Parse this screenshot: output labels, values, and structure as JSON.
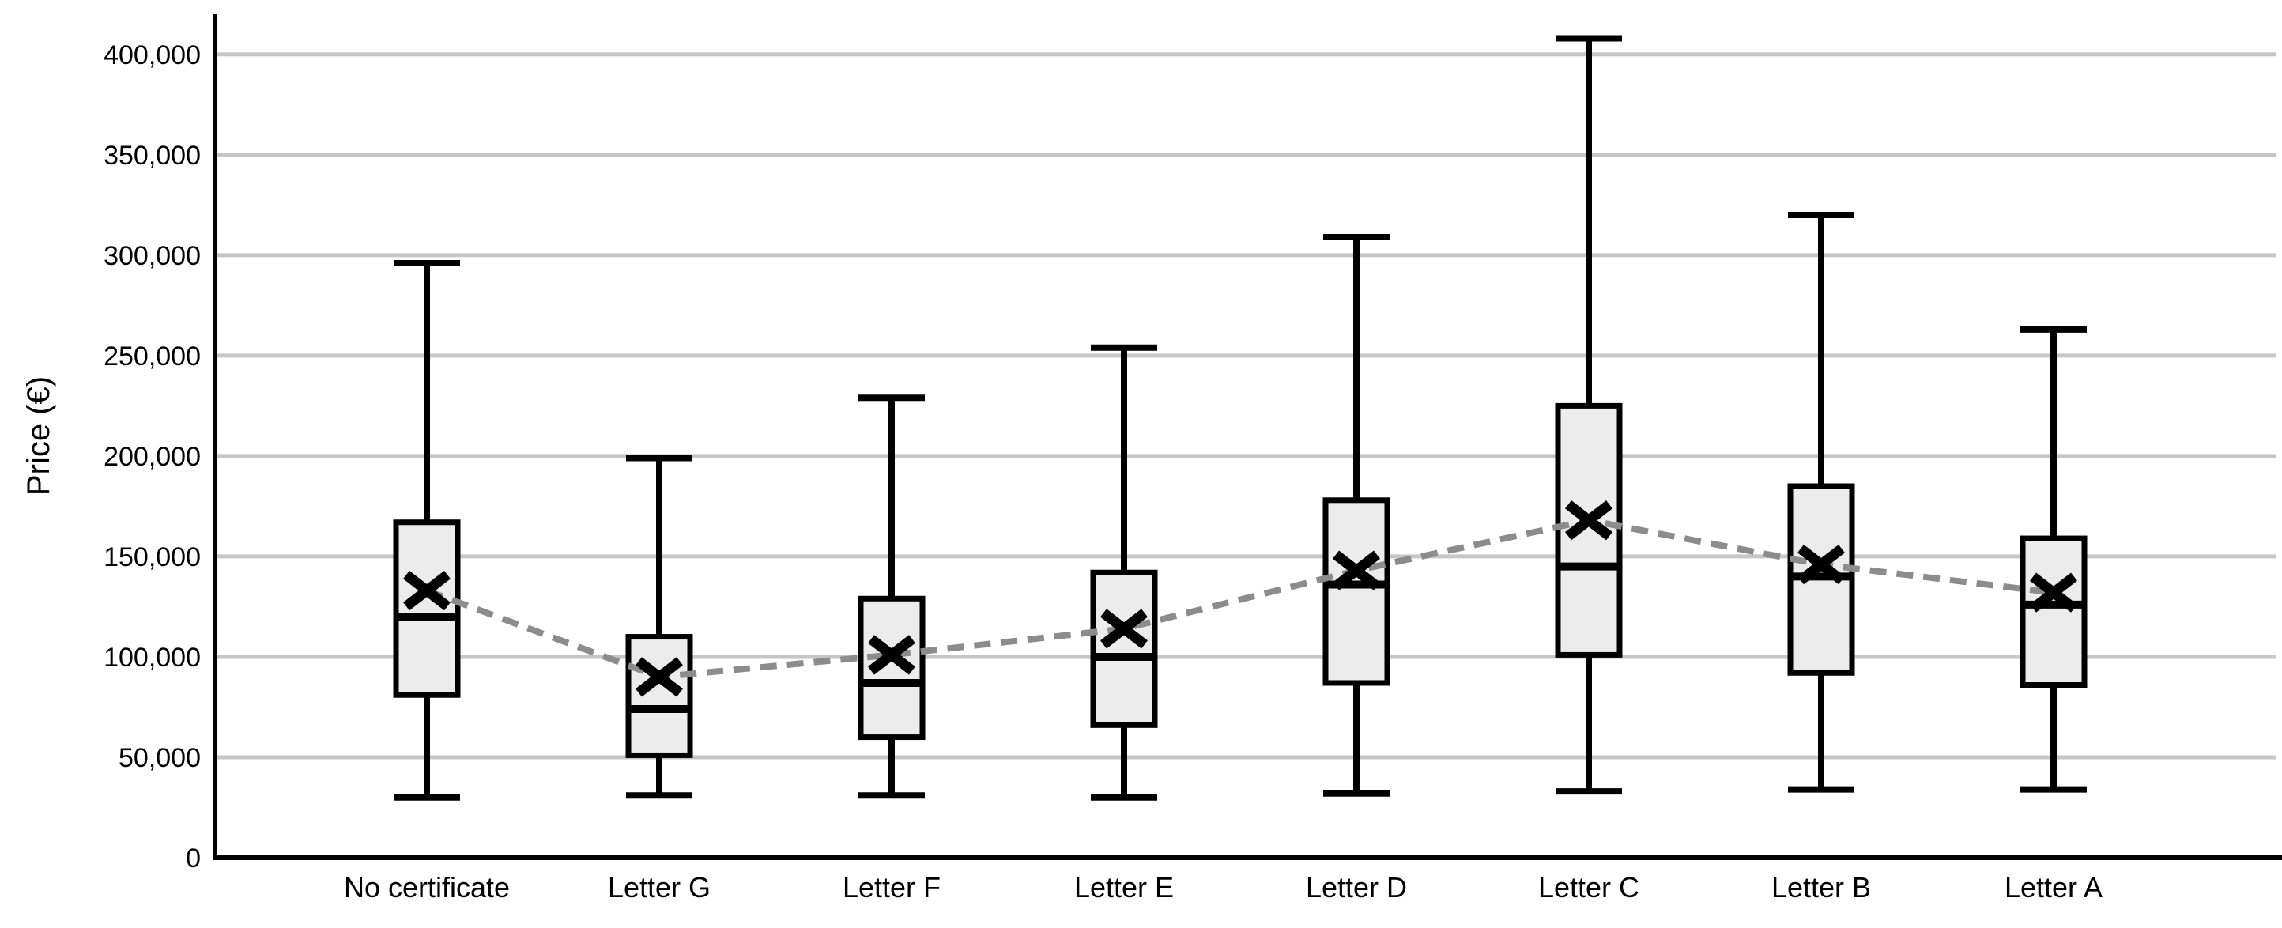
{
  "chart_data": {
    "type": "boxplot",
    "title": "",
    "ylabel": "Price (€)",
    "xlabel": "",
    "legend": null,
    "grid": "horizontal",
    "ylim": [
      0,
      420000
    ],
    "yticks": [
      {
        "value": 0,
        "label": "0"
      },
      {
        "value": 50000,
        "label": "50,000"
      },
      {
        "value": 100000,
        "label": "100,000"
      },
      {
        "value": 150000,
        "label": "150,000"
      },
      {
        "value": 200000,
        "label": "200,000"
      },
      {
        "value": 250000,
        "label": "250,000"
      },
      {
        "value": 300000,
        "label": "300,000"
      },
      {
        "value": 350000,
        "label": "350,000"
      },
      {
        "value": 400000,
        "label": "400,000"
      }
    ],
    "categories": [
      "No certificate",
      "Letter G",
      "Letter F",
      "Letter E",
      "Letter D",
      "Letter C",
      "Letter B",
      "Letter A"
    ],
    "series": [
      {
        "category": "No certificate",
        "min": 30000,
        "q1": 81000,
        "median": 120000,
        "mean": 133000,
        "q3": 167000,
        "max": 296000
      },
      {
        "category": "Letter G",
        "min": 31000,
        "q1": 51000,
        "median": 74000,
        "mean": 90000,
        "q3": 110000,
        "max": 199000
      },
      {
        "category": "Letter F",
        "min": 31000,
        "q1": 60000,
        "median": 87000,
        "mean": 101000,
        "q3": 129000,
        "max": 229000
      },
      {
        "category": "Letter E",
        "min": 30000,
        "q1": 66000,
        "median": 100000,
        "mean": 114000,
        "q3": 142000,
        "max": 254000
      },
      {
        "category": "Letter D",
        "min": 32000,
        "q1": 87000,
        "median": 136000,
        "mean": 143000,
        "q3": 178000,
        "max": 309000
      },
      {
        "category": "Letter C",
        "min": 33000,
        "q1": 101000,
        "median": 145000,
        "mean": 168000,
        "q3": 225000,
        "max": 408000
      },
      {
        "category": "Letter B",
        "min": 34000,
        "q1": 92000,
        "median": 140000,
        "mean": 146000,
        "q3": 185000,
        "max": 320000
      },
      {
        "category": "Letter A",
        "min": 34000,
        "q1": 86000,
        "median": 126000,
        "mean": 132000,
        "q3": 159000,
        "max": 263000
      }
    ],
    "mean_marker": "x",
    "mean_line_style": "dashed",
    "colors": {
      "box_fill": "#ececec",
      "box_stroke": "#000000",
      "whisker": "#000000",
      "median": "#000000",
      "mean_marker": "#000000",
      "mean_line": "#8c8c8c",
      "gridline": "#c6c6c6",
      "axis": "#000000",
      "background": "#ffffff"
    }
  }
}
